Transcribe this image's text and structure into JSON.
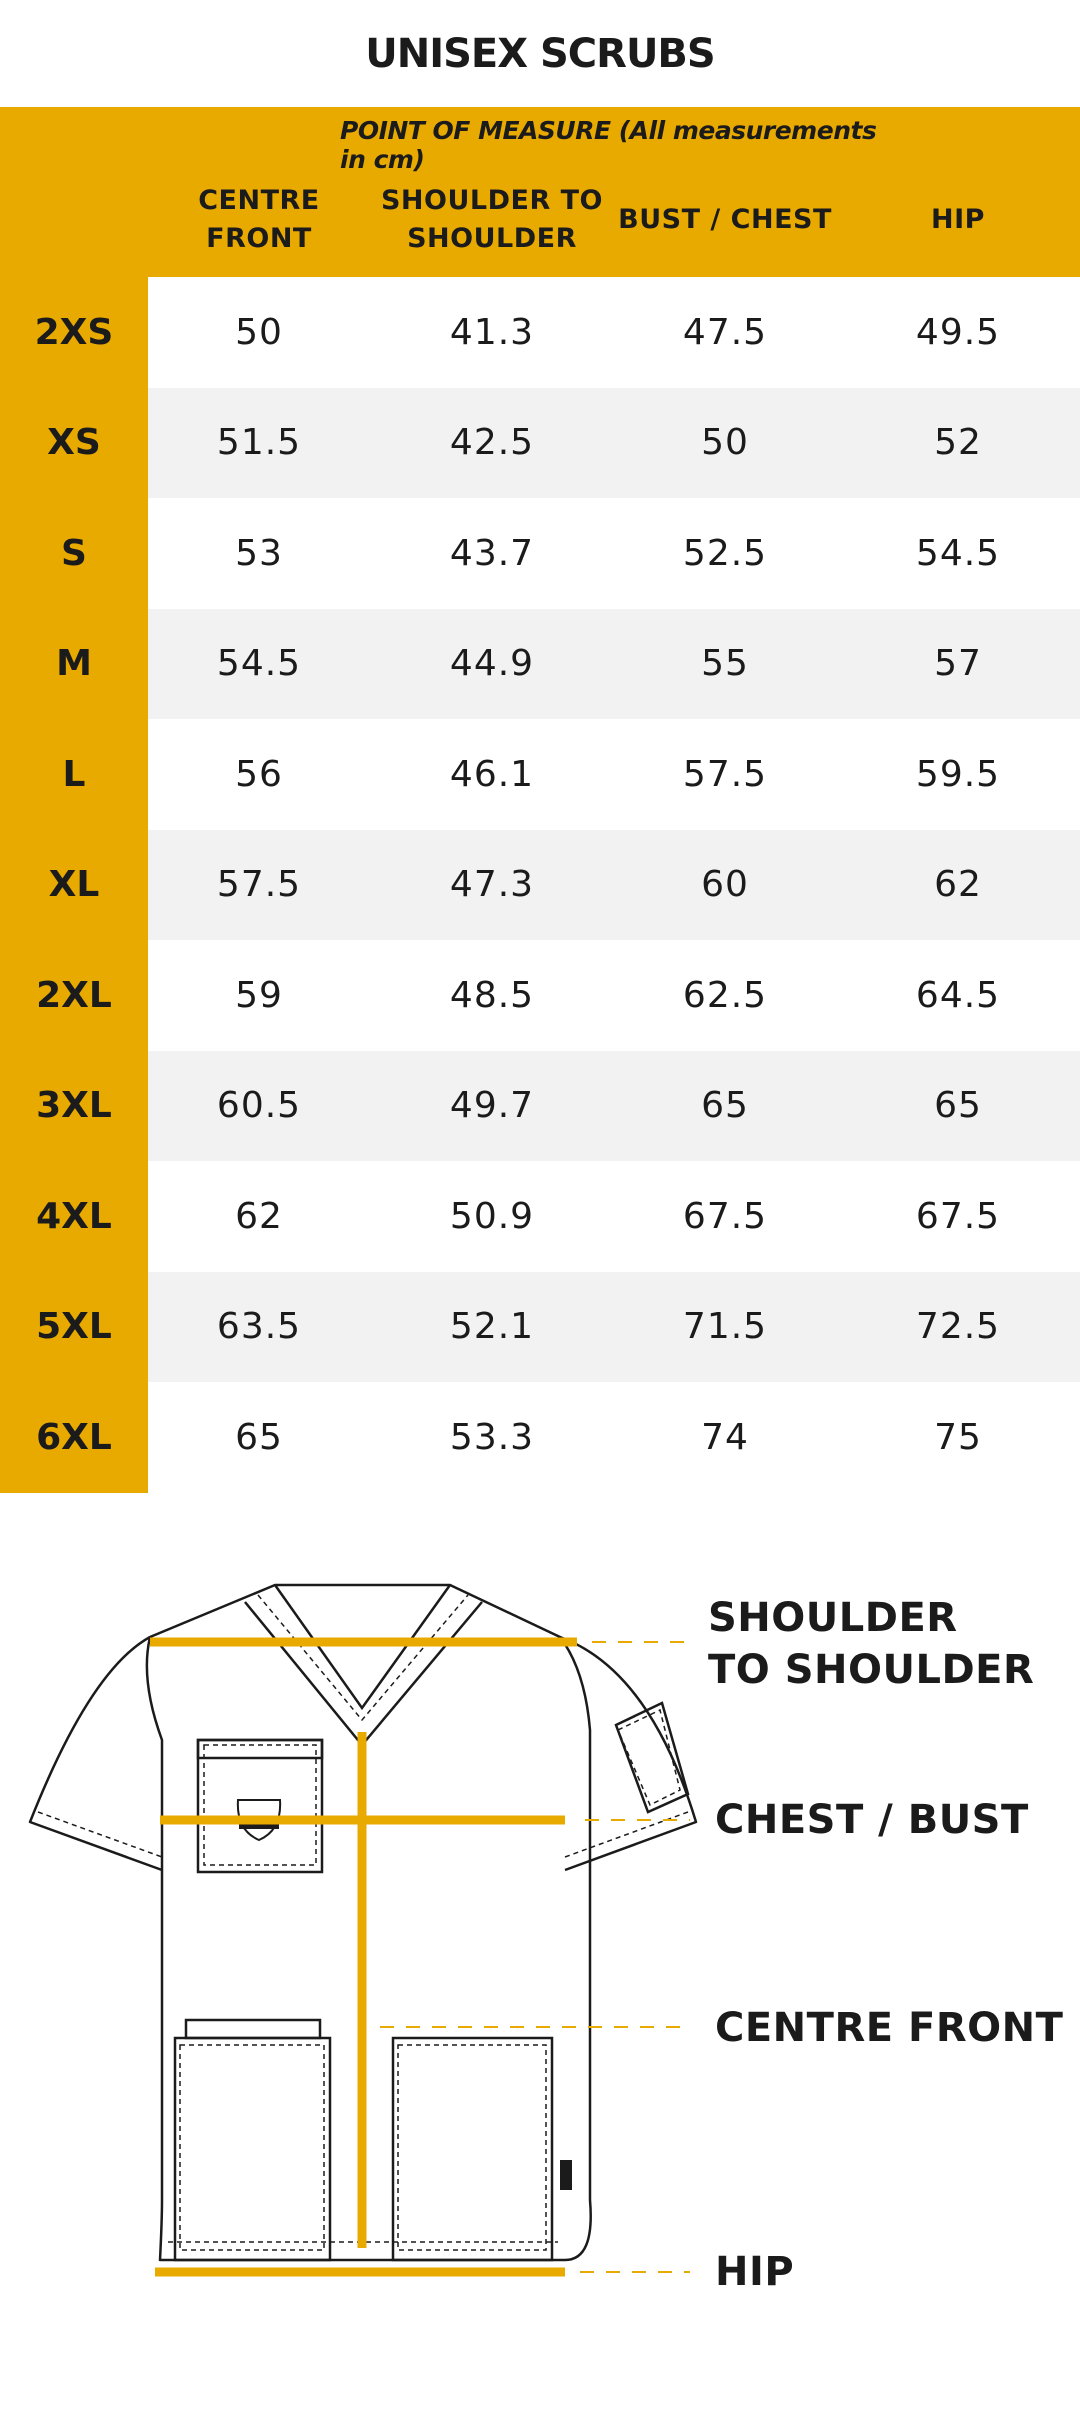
{
  "title": "UNISEX SCRUBS",
  "table": {
    "point_of_measure": "POINT OF MEASURE (All measurements in cm)",
    "columns": [
      {
        "line1": "CENTRE",
        "line2": "FRONT"
      },
      {
        "line1": "SHOULDER TO",
        "line2": "SHOULDER"
      },
      {
        "line1": "BUST / CHEST",
        "line2": ""
      },
      {
        "line1": "HIP",
        "line2": ""
      }
    ],
    "rows": [
      {
        "size": "2XS",
        "values": [
          "50",
          "41.3",
          "47.5",
          "49.5"
        ]
      },
      {
        "size": "XS",
        "values": [
          "51.5",
          "42.5",
          "50",
          "52"
        ]
      },
      {
        "size": "S",
        "values": [
          "53",
          "43.7",
          "52.5",
          "54.5"
        ]
      },
      {
        "size": "M",
        "values": [
          "54.5",
          "44.9",
          "55",
          "57"
        ]
      },
      {
        "size": "L",
        "values": [
          "56",
          "46.1",
          "57.5",
          "59.5"
        ]
      },
      {
        "size": "XL",
        "values": [
          "57.5",
          "47.3",
          "60",
          "62"
        ]
      },
      {
        "size": "2XL",
        "values": [
          "59",
          "48.5",
          "62.5",
          "64.5"
        ]
      },
      {
        "size": "3XL",
        "values": [
          "60.5",
          "49.7",
          "65",
          "65"
        ]
      },
      {
        "size": "4XL",
        "values": [
          "62",
          "50.9",
          "67.5",
          "67.5"
        ]
      },
      {
        "size": "5XL",
        "values": [
          "63.5",
          "52.1",
          "71.5",
          "72.5"
        ]
      },
      {
        "size": "6XL",
        "values": [
          "65",
          "53.3",
          "74",
          "75"
        ]
      }
    ]
  },
  "diagram": {
    "labels": {
      "shoulder_line1": "SHOULDER",
      "shoulder_line2": "TO SHOULDER",
      "chest": "CHEST / BUST",
      "centre_front": "CENTRE FRONT",
      "hip": "HIP"
    }
  },
  "colors": {
    "accent": "#e9aa00",
    "row_alt": "#f2f2f2",
    "text": "#1b1b1b"
  }
}
